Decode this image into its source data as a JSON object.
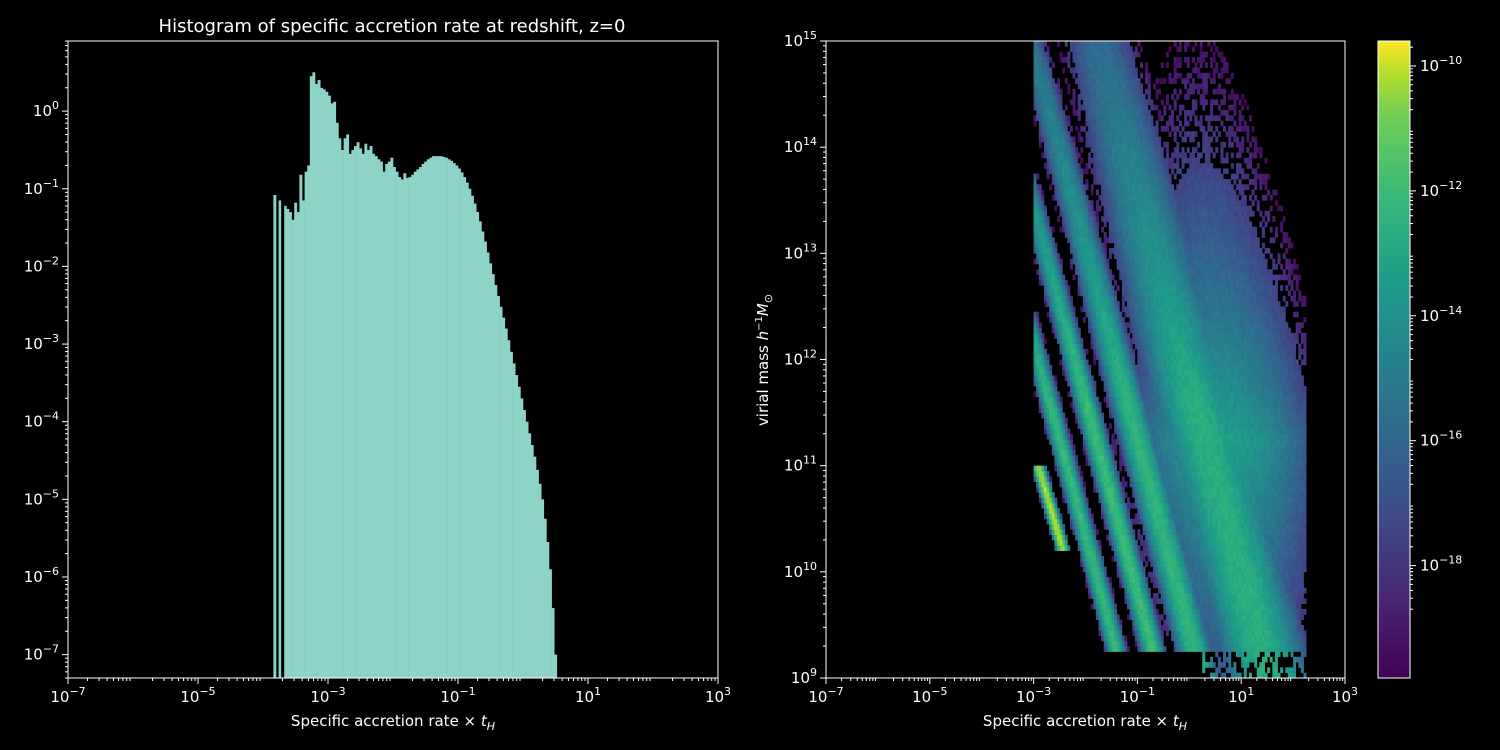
{
  "chart_data": [
    {
      "type": "bar",
      "title": "Histogram of specific accretion rate at redshift, z=0",
      "xlabel": "Specific accretion rate × t_H",
      "xlabel_main": "Specific accretion rate × ",
      "xlabel_sym": "t",
      "xlabel_sub": "H",
      "ylabel": "",
      "xscale": "log",
      "yscale": "log",
      "xlim": [
        1e-07,
        1000
      ],
      "ylim": [
        5e-08,
        8
      ],
      "x_ticks": [
        -7,
        -5,
        -3,
        -1,
        1,
        3
      ],
      "y_ticks": [
        -7,
        -6,
        -5,
        -4,
        -3,
        -2,
        -1,
        0
      ],
      "bar_color": "#8dd3c7",
      "bins_log10_edges": [
        -3.84,
        2.14
      ],
      "bin_width_log10": 0.04,
      "bin_centers_log10": [
        -3.82,
        -3.74,
        -3.7,
        -3.66,
        -3.62,
        -3.58,
        -3.54,
        -3.5,
        -3.46,
        -3.42,
        -3.38,
        -3.34,
        -3.3,
        -3.26,
        -3.22,
        -3.18,
        -3.14,
        -3.1,
        -3.06,
        -3.02,
        -2.98,
        -2.94,
        -2.9,
        -2.86,
        -2.82,
        -2.78,
        -2.74,
        -2.7,
        -2.66,
        -2.62,
        -2.58,
        -2.54,
        -2.5,
        -2.46,
        -2.42,
        -2.38,
        -2.34,
        -2.3,
        -2.26,
        -2.22,
        -2.18,
        -2.14,
        -2.1,
        -2.06,
        -2.02,
        -1.98,
        -1.94,
        -1.9,
        -1.86,
        -1.82,
        -1.78,
        -1.74,
        -1.7,
        -1.66,
        -1.62,
        -1.58,
        -1.54,
        -1.5,
        -1.46,
        -1.42,
        -1.38,
        -1.34,
        -1.3,
        -1.26,
        -1.22,
        -1.18,
        -1.14,
        -1.1,
        -1.06,
        -1.02,
        -0.98,
        -0.94,
        -0.9,
        -0.86,
        -0.82,
        -0.78,
        -0.74,
        -0.7,
        -0.66,
        -0.62,
        -0.58,
        -0.54,
        -0.5,
        -0.46,
        -0.42,
        -0.38,
        -0.34,
        -0.3,
        -0.26,
        -0.22,
        -0.18,
        -0.14,
        -0.1,
        -0.06,
        -0.02,
        0.02,
        0.06,
        0.1,
        0.14,
        0.18,
        0.22,
        0.26,
        0.3,
        0.34,
        0.38,
        0.42,
        0.46,
        0.5,
        0.54,
        0.58,
        0.62,
        0.66,
        0.7,
        0.74,
        0.78,
        0.82,
        0.86,
        0.9,
        0.94,
        0.98,
        1.02,
        1.06,
        1.1,
        1.14,
        1.18,
        1.22,
        1.26,
        1.3,
        1.34,
        1.38,
        1.42,
        1.46,
        1.5,
        1.54,
        1.58,
        1.62,
        1.66,
        1.7,
        1.74,
        1.78,
        1.82,
        1.86,
        1.9,
        1.94,
        1.98,
        2.02,
        2.06,
        2.1
      ],
      "values_log10": [
        -1.08,
        -1.15,
        -1.2,
        -1.22,
        -1.26,
        -1.3,
        -1.4,
        -1.18,
        -1.3,
        -0.82,
        -1.15,
        -0.78,
        -0.7,
        0.45,
        0.5,
        0.35,
        0.4,
        0.3,
        0.28,
        0.25,
        0.2,
        0.1,
        0.12,
        -0.15,
        -0.35,
        -0.5,
        -0.35,
        -0.3,
        -0.55,
        -0.5,
        -0.45,
        -0.4,
        -0.48,
        -0.55,
        -0.42,
        -0.5,
        -0.45,
        -0.55,
        -0.58,
        -0.62,
        -0.65,
        -0.78,
        -0.68,
        -0.65,
        -0.6,
        -0.72,
        -0.78,
        -0.85,
        -0.88,
        -0.8,
        -0.86,
        -0.85,
        -0.82,
        -0.78,
        -0.75,
        -0.72,
        -0.68,
        -0.65,
        -0.62,
        -0.6,
        -0.58,
        -0.58,
        -0.58,
        -0.58,
        -0.59,
        -0.6,
        -0.62,
        -0.64,
        -0.67,
        -0.7,
        -0.74,
        -0.79,
        -0.85,
        -0.92,
        -1.0,
        -1.09,
        -1.19,
        -1.3,
        -1.42,
        -1.55,
        -1.68,
        -1.82,
        -1.96,
        -2.1,
        -2.24,
        -2.38,
        -2.52,
        -2.66,
        -2.8,
        -2.95,
        -3.1,
        -3.25,
        -3.4,
        -3.55,
        -3.7,
        -3.85,
        -4.0,
        -4.15,
        -4.3,
        -4.45,
        -4.62,
        -4.8,
        -5.0,
        -5.25,
        -5.55,
        -5.9,
        -6.4,
        -7.0,
        -7.3,
        -7.3,
        -7.3,
        -7.3,
        -7.3,
        -7.3,
        -7.3,
        -7.3,
        -7.3,
        -7.3,
        -7.3,
        -7.3,
        -7.3,
        -7.3,
        -7.3,
        -7.3,
        -7.3,
        -7.3,
        -7.3,
        -7.3,
        -7.3,
        -7.3,
        -7.3,
        -7.3,
        -7.3,
        -7.3,
        -7.3,
        -7.3,
        -7.3,
        -7.3,
        -7.3,
        -7.3,
        -7.3,
        -7.3,
        -7.3,
        -7.3,
        -7.3,
        -7.3,
        -7.3,
        -7.3
      ]
    },
    {
      "type": "heatmap",
      "title": "",
      "xlabel": "Specific accretion rate × t_H",
      "xlabel_main": "Specific accretion rate × ",
      "xlabel_sym": "t",
      "xlabel_sub": "H",
      "ylabel": "virial mass h^-1 M_sun",
      "ylabel_main": "virial mass ",
      "ylabel_h": "h",
      "ylabel_exp": "−1",
      "ylabel_M": "M",
      "ylabel_sub": "⊙",
      "xscale": "log",
      "yscale": "log",
      "xlim": [
        1e-07,
        1000
      ],
      "ylim": [
        1000000000.0,
        1000000000000000.0
      ],
      "x_ticks": [
        -7,
        -5,
        -3,
        -1,
        1,
        3
      ],
      "y_ticks": [
        9,
        10,
        11,
        12,
        13,
        14,
        15
      ],
      "colormap": "viridis",
      "colorbar": {
        "scale": "log",
        "range_log10": [
          -19.8,
          -9.6
        ],
        "ticks": [
          -10,
          -12,
          -14,
          -16,
          -18
        ]
      },
      "density_model": {
        "bands": [
          {
            "note": "dominant main diagonal",
            "x_center_at_logM10": 0.95,
            "slope_dlogx_dlogM": -0.55,
            "width": 0.45,
            "peak_log10": -12.6
          },
          {
            "note": "secondary diagonal",
            "x_center_at_logM10": -0.35,
            "slope_dlogx_dlogM": -0.55,
            "width": 0.18,
            "peak_log10": -12.3
          },
          {
            "note": "tertiary diagonal",
            "x_center_at_logM10": -1.15,
            "slope_dlogx_dlogM": -0.55,
            "width": 0.12,
            "peak_log10": -12.0
          },
          {
            "note": "faint diagonal",
            "x_center_at_logM10": -1.85,
            "slope_dlogx_dlogM": -0.55,
            "width": 0.1,
            "peak_log10": -12.2
          },
          {
            "note": "bright yellow streak",
            "x_center_at_logM10": -2.35,
            "slope_dlogx_dlogM": -0.6,
            "width": 0.06,
            "peak_log10": -10.2,
            "logM_range": [
              10.2,
              11.0
            ]
          }
        ]
      }
    }
  ]
}
